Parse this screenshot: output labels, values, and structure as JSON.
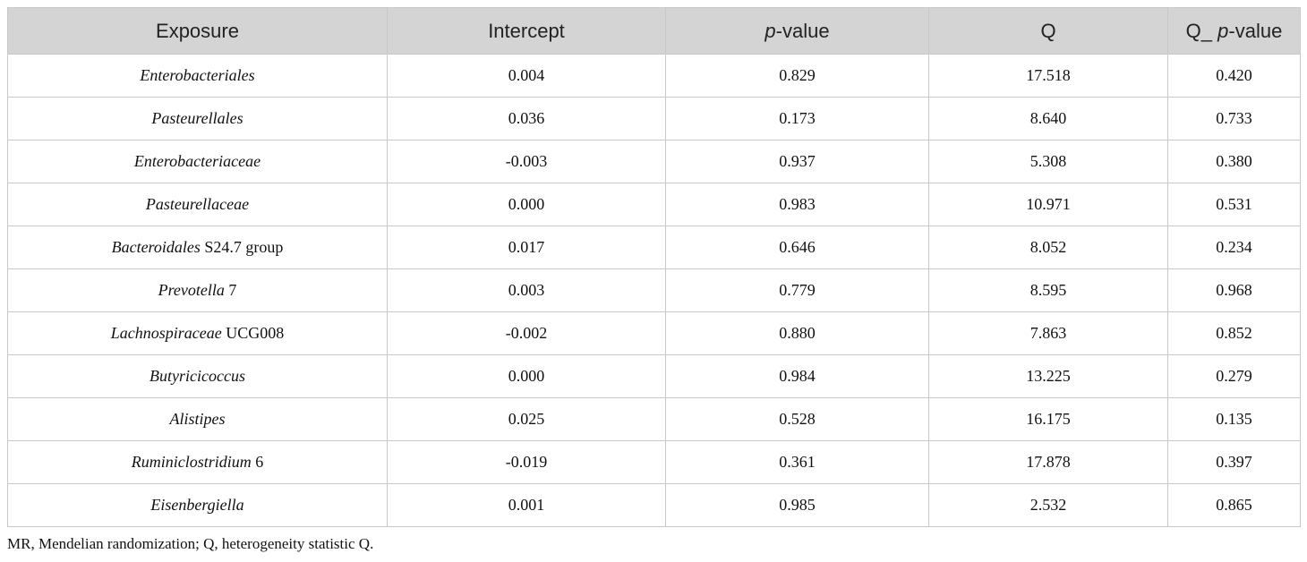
{
  "table": {
    "header": [
      "Exposure",
      "Intercept",
      [
        {
          "text": "p",
          "italic": true
        },
        {
          "text": "-value"
        }
      ],
      "Q",
      [
        {
          "text": "Q_ "
        },
        {
          "text": "p",
          "italic": true
        },
        {
          "text": "-value"
        }
      ]
    ],
    "rows": [
      [
        [
          {
            "text": "Enterobacteriales",
            "italic": true
          }
        ],
        "0.004",
        "0.829",
        "17.518",
        "0.420"
      ],
      [
        [
          {
            "text": "Pasteurellales",
            "italic": true
          }
        ],
        "0.036",
        "0.173",
        "8.640",
        "0.733"
      ],
      [
        [
          {
            "text": "Enterobacteriaceae",
            "italic": true
          }
        ],
        "-0.003",
        "0.937",
        "5.308",
        "0.380"
      ],
      [
        [
          {
            "text": "Pasteurellaceae",
            "italic": true
          }
        ],
        "0.000",
        "0.983",
        "10.971",
        "0.531"
      ],
      [
        [
          {
            "text": "Bacteroidales",
            "italic": true
          },
          {
            "text": " S24.7 group"
          }
        ],
        "0.017",
        "0.646",
        "8.052",
        "0.234"
      ],
      [
        [
          {
            "text": "Prevotella",
            "italic": true
          },
          {
            "text": " 7"
          }
        ],
        "0.003",
        "0.779",
        "8.595",
        "0.968"
      ],
      [
        [
          {
            "text": "Lachnospiraceae",
            "italic": true
          },
          {
            "text": " UCG008"
          }
        ],
        "-0.002",
        "0.880",
        "7.863",
        "0.852"
      ],
      [
        [
          {
            "text": "Butyricicoccus",
            "italic": true
          }
        ],
        "0.000",
        "0.984",
        "13.225",
        "0.279"
      ],
      [
        [
          {
            "text": "Alistipes",
            "italic": true
          }
        ],
        "0.025",
        "0.528",
        "16.175",
        "0.135"
      ],
      [
        [
          {
            "text": "Ruminiclostridium",
            "italic": true
          },
          {
            "text": " 6"
          }
        ],
        "-0.019",
        "0.361",
        "17.878",
        "0.397"
      ],
      [
        [
          {
            "text": "Eisenbergiella",
            "italic": true
          }
        ],
        "0.001",
        "0.985",
        "2.532",
        "0.865"
      ]
    ]
  },
  "footnote": "MR, Mendelian randomization; Q, heterogeneity statistic Q."
}
